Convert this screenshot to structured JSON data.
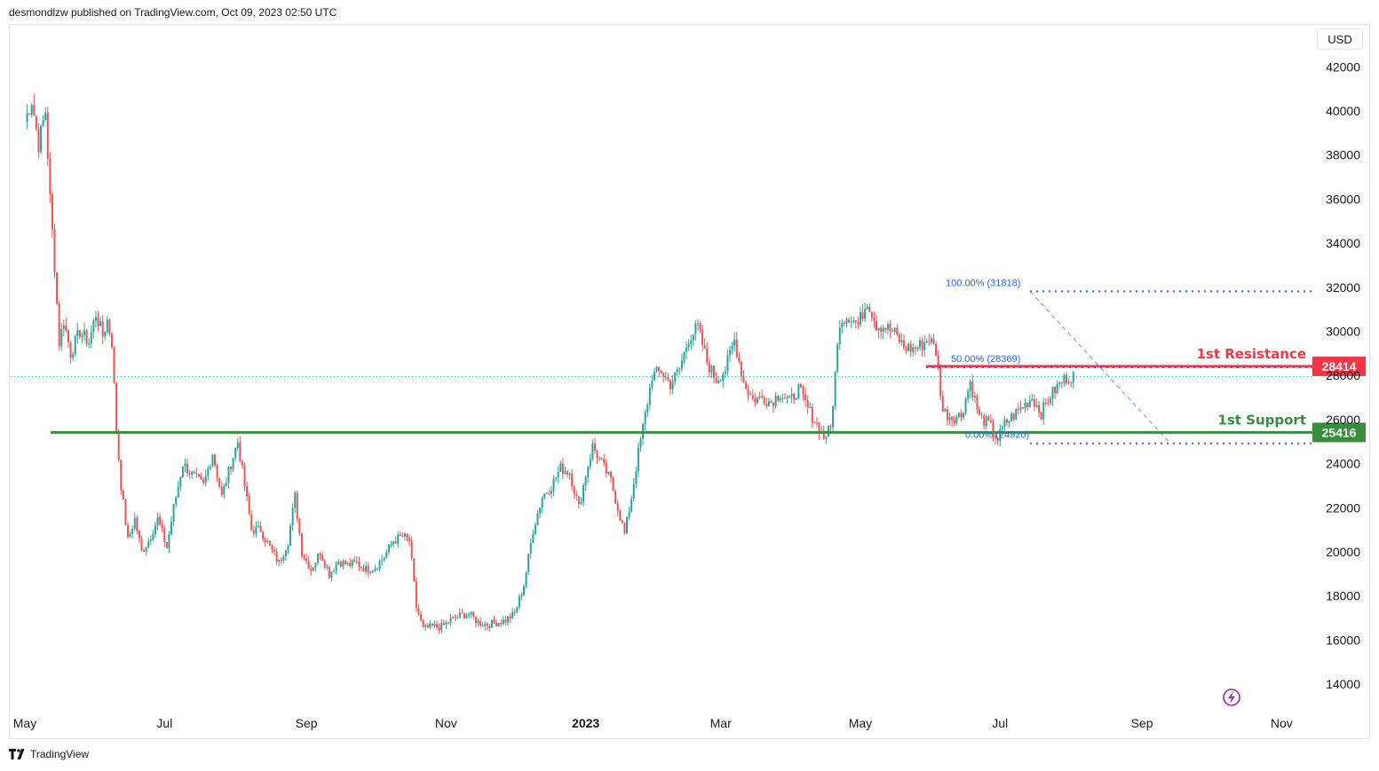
{
  "header": {
    "publisher": "desmondlzw published on TradingView.com, Oct 09, 2023 02:50 UTC"
  },
  "toolbar": {
    "currency": "USD"
  },
  "footer": {
    "brand": "TradingView"
  },
  "colors": {
    "up": "#26a69a",
    "down": "#ef5350",
    "resistance": "#f23645",
    "support": "#388e3c",
    "fib": "#2962ff"
  },
  "chart_data": {
    "type": "candlestick",
    "y_ticks": [
      "42000",
      "40000",
      "38000",
      "36000",
      "34000",
      "32000",
      "30000",
      "28000",
      "26000",
      "24000",
      "22000",
      "20000",
      "18000",
      "16000",
      "14000"
    ],
    "ylim": [
      13000,
      43000
    ],
    "x_ticks": [
      {
        "label": "May",
        "t": 0
      },
      {
        "label": "Jul",
        "t": 61
      },
      {
        "label": "Sep",
        "t": 123
      },
      {
        "label": "Nov",
        "t": 184
      },
      {
        "label": "2023",
        "t": 245
      },
      {
        "label": "Mar",
        "t": 304
      },
      {
        "label": "May",
        "t": 365
      },
      {
        "label": "Jul",
        "t": 426
      },
      {
        "label": "Sep",
        "t": 488
      },
      {
        "label": "Nov",
        "t": 549
      }
    ],
    "anchors": [
      [
        0,
        39500
      ],
      [
        3,
        40500
      ],
      [
        6,
        38500
      ],
      [
        9,
        40000
      ],
      [
        11,
        36000
      ],
      [
        13,
        33000
      ],
      [
        15,
        29500
      ],
      [
        17,
        30500
      ],
      [
        20,
        29000
      ],
      [
        24,
        30000
      ],
      [
        28,
        29500
      ],
      [
        31,
        30800
      ],
      [
        34,
        29800
      ],
      [
        36,
        30500
      ],
      [
        38,
        29500
      ],
      [
        40,
        25500
      ],
      [
        42,
        23000
      ],
      [
        45,
        20500
      ],
      [
        48,
        21500
      ],
      [
        51,
        20000
      ],
      [
        54,
        20500
      ],
      [
        58,
        21500
      ],
      [
        62,
        20200
      ],
      [
        65,
        22000
      ],
      [
        69,
        24000
      ],
      [
        73,
        23500
      ],
      [
        78,
        23000
      ],
      [
        82,
        24500
      ],
      [
        86,
        22500
      ],
      [
        90,
        24000
      ],
      [
        93,
        25000
      ],
      [
        96,
        23000
      ],
      [
        99,
        21000
      ],
      [
        103,
        21000
      ],
      [
        107,
        20200
      ],
      [
        111,
        19500
      ],
      [
        115,
        20500
      ],
      [
        118,
        22500
      ],
      [
        121,
        20000
      ],
      [
        125,
        19200
      ],
      [
        129,
        20000
      ],
      [
        133,
        19000
      ],
      [
        137,
        19600
      ],
      [
        141,
        19400
      ],
      [
        145,
        19500
      ],
      [
        149,
        19200
      ],
      [
        153,
        19300
      ],
      [
        157,
        19800
      ],
      [
        161,
        20500
      ],
      [
        165,
        20700
      ],
      [
        168,
        20500
      ],
      [
        171,
        17500
      ],
      [
        174,
        16500
      ],
      [
        178,
        16600
      ],
      [
        182,
        16600
      ],
      [
        186,
        16900
      ],
      [
        190,
        17100
      ],
      [
        194,
        17200
      ],
      [
        198,
        16800
      ],
      [
        202,
        16700
      ],
      [
        206,
        16800
      ],
      [
        210,
        16900
      ],
      [
        214,
        17200
      ],
      [
        218,
        18500
      ],
      [
        222,
        21000
      ],
      [
        226,
        22500
      ],
      [
        230,
        23000
      ],
      [
        234,
        23800
      ],
      [
        238,
        23600
      ],
      [
        242,
        22000
      ],
      [
        245,
        23500
      ],
      [
        248,
        24800
      ],
      [
        252,
        24000
      ],
      [
        256,
        23200
      ],
      [
        259,
        22000
      ],
      [
        262,
        20800
      ],
      [
        265,
        22500
      ],
      [
        268,
        24500
      ],
      [
        271,
        26200
      ],
      [
        274,
        28000
      ],
      [
        278,
        28200
      ],
      [
        282,
        27600
      ],
      [
        286,
        28300
      ],
      [
        290,
        29700
      ],
      [
        294,
        30200
      ],
      [
        298,
        28600
      ],
      [
        302,
        27800
      ],
      [
        306,
        28300
      ],
      [
        310,
        29600
      ],
      [
        314,
        27700
      ],
      [
        318,
        26900
      ],
      [
        322,
        27000
      ],
      [
        326,
        26800
      ],
      [
        330,
        27200
      ],
      [
        334,
        26800
      ],
      [
        338,
        27400
      ],
      [
        342,
        26500
      ],
      [
        346,
        25800
      ],
      [
        349,
        25200
      ],
      [
        352,
        25600
      ],
      [
        356,
        30500
      ],
      [
        360,
        30700
      ],
      [
        364,
        30300
      ],
      [
        368,
        31400
      ],
      [
        372,
        30300
      ],
      [
        376,
        30200
      ],
      [
        380,
        29900
      ],
      [
        384,
        29300
      ],
      [
        388,
        29200
      ],
      [
        392,
        29400
      ],
      [
        395,
        29700
      ],
      [
        398,
        29100
      ],
      [
        401,
        26400
      ],
      [
        405,
        26100
      ],
      [
        409,
        26200
      ],
      [
        413,
        27700
      ],
      [
        417,
        26100
      ],
      [
        421,
        25800
      ],
      [
        425,
        25100
      ],
      [
        428,
        25800
      ],
      [
        432,
        26200
      ],
      [
        436,
        26600
      ],
      [
        440,
        27000
      ],
      [
        444,
        26300
      ],
      [
        448,
        27100
      ],
      [
        452,
        27600
      ],
      [
        455,
        27900
      ],
      [
        458,
        28000
      ]
    ],
    "resistance": {
      "value": 28414,
      "label": "1st Resistance",
      "price_tag": "28414"
    },
    "support": {
      "value": 25416,
      "label": "1st Support",
      "price_tag": "25416"
    },
    "fib_levels": [
      {
        "label": "100.00% (31818)",
        "value": 31818
      },
      {
        "label": "50.00% (28369)",
        "value": 28369
      },
      {
        "label": "0.00% (24920)",
        "value": 24920
      }
    ],
    "last_price": 27950,
    "grid": false
  }
}
